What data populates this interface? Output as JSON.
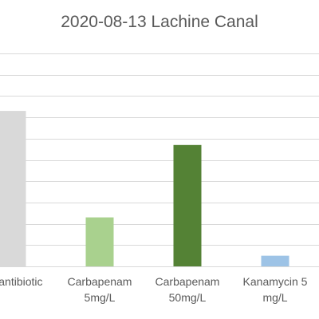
{
  "chart_data": {
    "type": "bar",
    "title": "2020-08-13 Lachine Canal",
    "categories": [
      [
        "No antibiotic"
      ],
      [
        "Carbapenam",
        "5mg/L"
      ],
      [
        "Carbapenam",
        "50mg/L"
      ],
      [
        "Kanamycin 5",
        "mg/L"
      ]
    ],
    "values": [
      7.3,
      2.3,
      5.7,
      0.5
    ],
    "colors": [
      "#d9d9d9",
      "#a9d18e",
      "#548235",
      "#9dc3e6"
    ],
    "ylim": [
      0,
      10
    ],
    "ytick_step": 1,
    "grid": true,
    "legend": "none",
    "xlabel": "",
    "ylabel": ""
  }
}
